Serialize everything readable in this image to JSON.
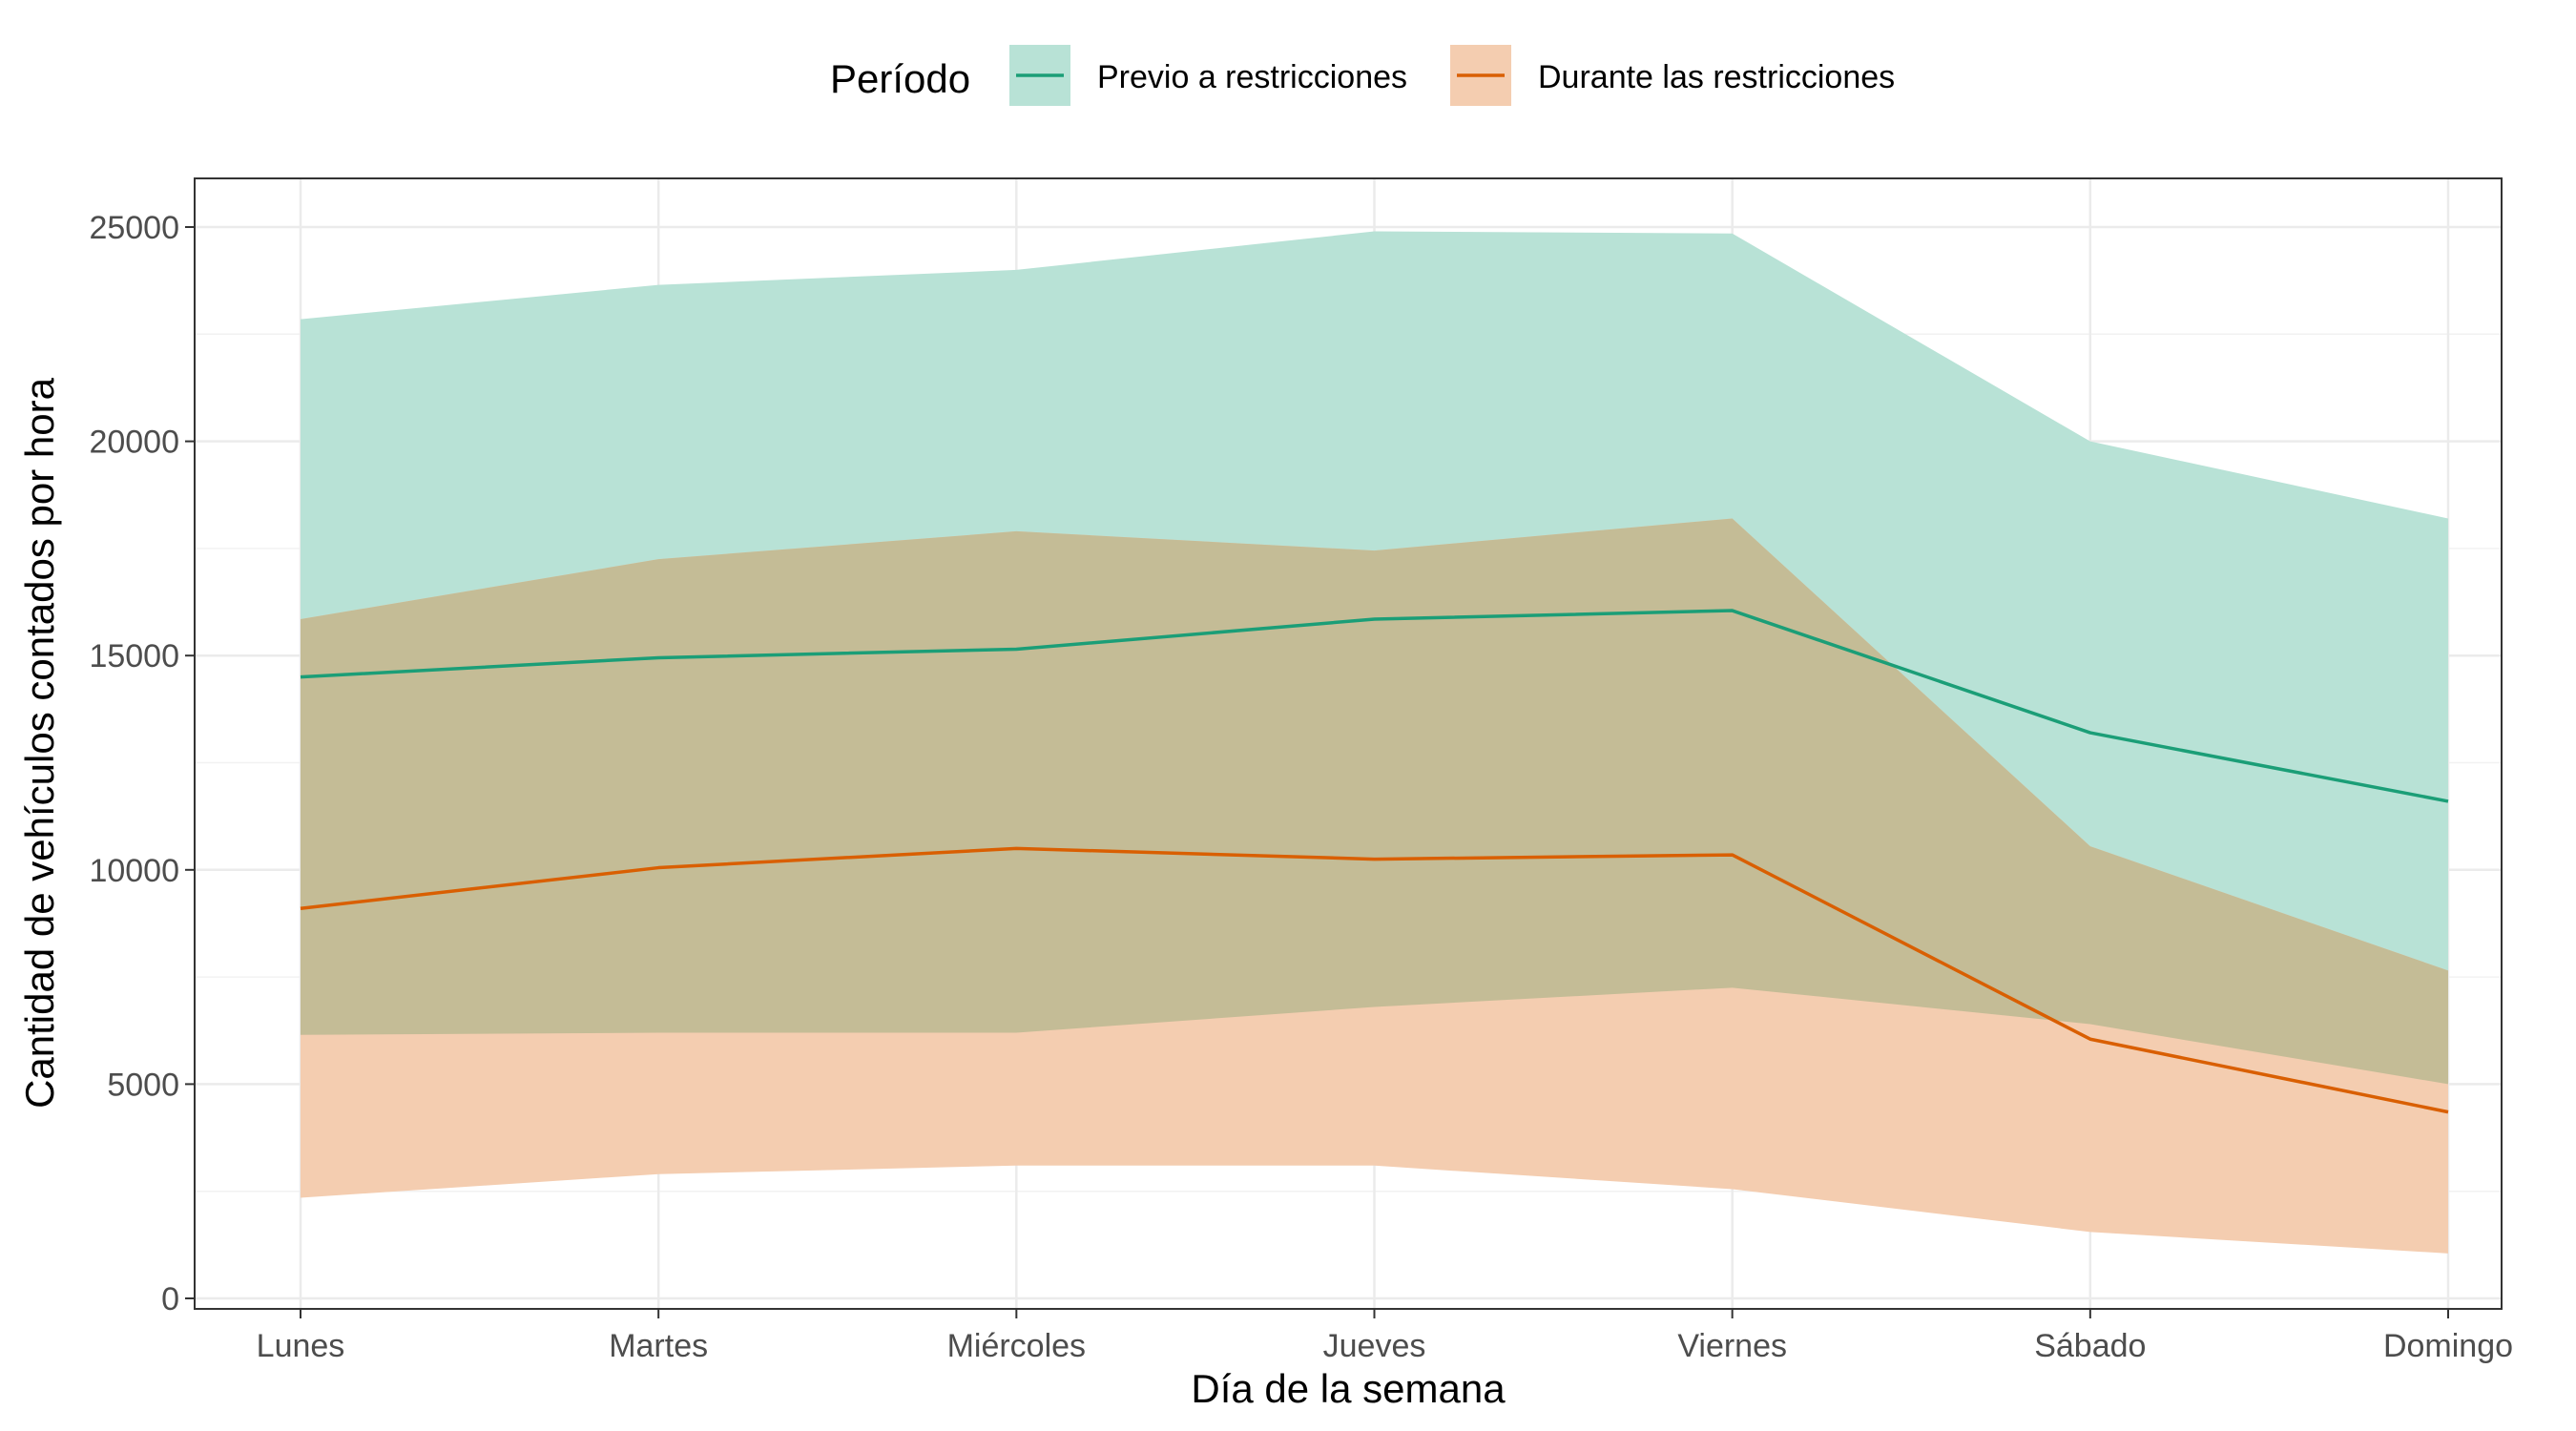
{
  "chart_data": {
    "type": "area",
    "xlabel": "Día de la semana",
    "ylabel": "Cantidad de vehículos contados por hora",
    "categories": [
      "Lunes",
      "Martes",
      "Miércoles",
      "Jueves",
      "Viernes",
      "Sábado",
      "Domingo"
    ],
    "ylim": [
      0,
      26000
    ],
    "yticks": [
      0,
      5000,
      10000,
      15000,
      20000,
      25000
    ],
    "grid": true,
    "legend": {
      "title": "Período",
      "position": "top"
    },
    "series": [
      {
        "name": "Previo a restricciones",
        "color": "#1b9e77",
        "ribbon_color": "#b8e2d6",
        "values": [
          14500,
          14950,
          15150,
          15850,
          16050,
          13200,
          11600
        ],
        "lower": [
          6150,
          6200,
          6200,
          6800,
          7250,
          6400,
          5000
        ],
        "upper": [
          22850,
          23650,
          24000,
          24900,
          24850,
          20000,
          18200
        ]
      },
      {
        "name": "Durante las restricciones",
        "color": "#d95f02",
        "ribbon_color": "#f4cdb0",
        "values": [
          9100,
          10050,
          10500,
          10250,
          10350,
          6050,
          4350
        ],
        "lower": [
          2350,
          2900,
          3100,
          3100,
          2550,
          1550,
          1050
        ],
        "upper": [
          15850,
          17250,
          17900,
          17450,
          18200,
          10550,
          7650
        ]
      }
    ],
    "overlap_color": "#c4bc96"
  }
}
